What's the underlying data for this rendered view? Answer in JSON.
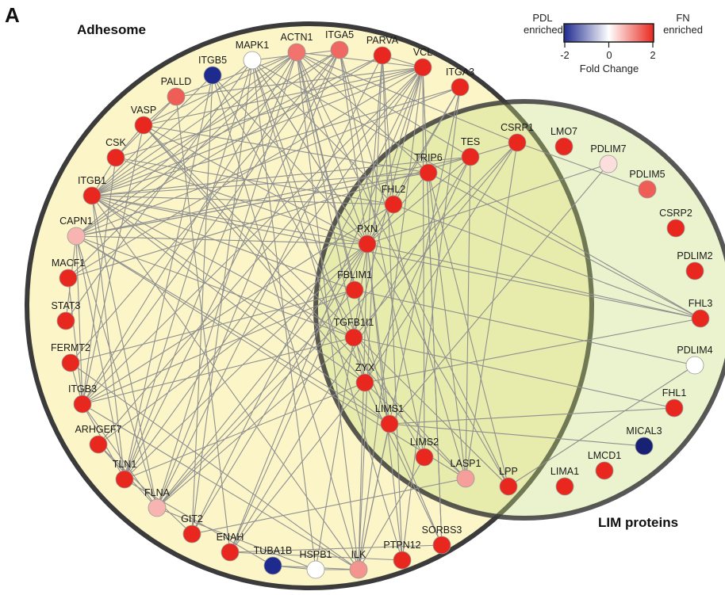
{
  "panel_label": "A",
  "sets": {
    "adhesome": {
      "label": "Adhesome",
      "fill": "#fbf5c8"
    },
    "lim": {
      "label": "LIM proteins",
      "fill": "#e8efc4"
    }
  },
  "legend": {
    "left_label_1": "PDL",
    "left_label_2": "enriched",
    "right_label_1": "FN",
    "right_label_2": "enriched",
    "ticks": [
      "-2",
      "0",
      "2"
    ],
    "axis_label": "Fold Change",
    "colors": [
      "#1f2a8f",
      "#ffffff",
      "#e8281e"
    ]
  },
  "nodes": [
    {
      "id": "ITGB5",
      "fc": -2
    },
    {
      "id": "MAPK1",
      "fc": 0
    },
    {
      "id": "ACTN1",
      "fc": 1.3
    },
    {
      "id": "ITGA5",
      "fc": 1.4
    },
    {
      "id": "PARVA",
      "fc": 2
    },
    {
      "id": "VCL",
      "fc": 2
    },
    {
      "id": "ITGA3",
      "fc": 2
    },
    {
      "id": "PALLD",
      "fc": 1.5
    },
    {
      "id": "VASP",
      "fc": 2
    },
    {
      "id": "CSK",
      "fc": 2
    },
    {
      "id": "ITGB1",
      "fc": 2
    },
    {
      "id": "CAPN1",
      "fc": 0.7
    },
    {
      "id": "MACF1",
      "fc": 2
    },
    {
      "id": "STAT3",
      "fc": 2
    },
    {
      "id": "FERMT2",
      "fc": 2
    },
    {
      "id": "ITGB3",
      "fc": 2
    },
    {
      "id": "ARHGEF7",
      "fc": 2
    },
    {
      "id": "TLN1",
      "fc": 2
    },
    {
      "id": "FLNA",
      "fc": 0.7
    },
    {
      "id": "GIT2",
      "fc": 2
    },
    {
      "id": "ENAH",
      "fc": 2
    },
    {
      "id": "TUBA1B",
      "fc": -2
    },
    {
      "id": "HSPB1",
      "fc": 0
    },
    {
      "id": "ILK",
      "fc": 1.0
    },
    {
      "id": "PTPN12",
      "fc": 2
    },
    {
      "id": "SORBS3",
      "fc": 2
    },
    {
      "id": "TES",
      "fc": 2
    },
    {
      "id": "CSRP1",
      "fc": 2
    },
    {
      "id": "TRIP6",
      "fc": 2
    },
    {
      "id": "FHL2",
      "fc": 2
    },
    {
      "id": "PXN",
      "fc": 2
    },
    {
      "id": "FBLIM1",
      "fc": 2
    },
    {
      "id": "TGFB1I1",
      "fc": 2
    },
    {
      "id": "ZYX",
      "fc": 2
    },
    {
      "id": "LIMS1",
      "fc": 2
    },
    {
      "id": "LIMS2",
      "fc": 2
    },
    {
      "id": "LASP1",
      "fc": 0.9
    },
    {
      "id": "LPP",
      "fc": 2
    },
    {
      "id": "LMO7",
      "fc": 2
    },
    {
      "id": "PDLIM7",
      "fc": 0.3
    },
    {
      "id": "PDLIM5",
      "fc": 1.5
    },
    {
      "id": "CSRP2",
      "fc": 2
    },
    {
      "id": "PDLIM2",
      "fc": 2
    },
    {
      "id": "FHL3",
      "fc": 2
    },
    {
      "id": "PDLIM4",
      "fc": 0
    },
    {
      "id": "FHL1",
      "fc": 2
    },
    {
      "id": "MICAL3",
      "fc": -2.2
    },
    {
      "id": "LMCD1",
      "fc": 2
    },
    {
      "id": "LIMA1",
      "fc": 2
    }
  ],
  "edges": [
    [
      "PXN",
      "ITGB1"
    ],
    [
      "PXN",
      "CAPN1"
    ],
    [
      "PXN",
      "VCL"
    ],
    [
      "PXN",
      "PARVA"
    ],
    [
      "PXN",
      "ILK"
    ],
    [
      "PXN",
      "TES"
    ],
    [
      "PXN",
      "ITGA5"
    ],
    [
      "PXN",
      "GIT2"
    ],
    [
      "PXN",
      "CSK"
    ],
    [
      "PXN",
      "TLN1"
    ],
    [
      "PXN",
      "PTPN12"
    ],
    [
      "PXN",
      "ACTN1"
    ],
    [
      "PXN",
      "VASP"
    ],
    [
      "PXN",
      "MAPK1"
    ],
    [
      "PXN",
      "ITGB5"
    ],
    [
      "PXN",
      "LIMS1"
    ],
    [
      "PXN",
      "LPP"
    ],
    [
      "PXN",
      "FHL3"
    ],
    [
      "PXN",
      "ITGA3"
    ],
    [
      "PXN",
      "FLNA"
    ],
    [
      "PXN",
      "ENAH"
    ],
    [
      "PXN",
      "ARHGEF7"
    ],
    [
      "ZYX",
      "VASP"
    ],
    [
      "ZYX",
      "ACTN1"
    ],
    [
      "ZYX",
      "ENAH"
    ],
    [
      "ZYX",
      "TES"
    ],
    [
      "ZYX",
      "LASP1"
    ],
    [
      "ZYX",
      "CSRP1"
    ],
    [
      "ZYX",
      "TLN1"
    ],
    [
      "ZYX",
      "ITGB1"
    ],
    [
      "ZYX",
      "FHL3"
    ],
    [
      "ZYX",
      "MAPK1"
    ],
    [
      "TGFB1I1",
      "PXN"
    ],
    [
      "TGFB1I1",
      "ITGB1"
    ],
    [
      "TGFB1I1",
      "VCL"
    ],
    [
      "TGFB1I1",
      "FLNA"
    ],
    [
      "TGFB1I1",
      "CSRP1"
    ],
    [
      "TGFB1I1",
      "FHL1"
    ],
    [
      "TGFB1I1",
      "CAPN1"
    ],
    [
      "TGFB1I1",
      "ITGB3"
    ],
    [
      "FBLIM1",
      "ITGB1"
    ],
    [
      "FBLIM1",
      "FLNA"
    ],
    [
      "FBLIM1",
      "FERMT2"
    ],
    [
      "FBLIM1",
      "ITGB3"
    ],
    [
      "FBLIM1",
      "PDLIM4"
    ],
    [
      "FBLIM1",
      "ACTN1"
    ],
    [
      "FHL2",
      "ITGB1"
    ],
    [
      "FHL2",
      "ITGA3"
    ],
    [
      "FHL2",
      "ITGB3"
    ],
    [
      "FHL2",
      "CSK"
    ],
    [
      "FHL2",
      "PARVA"
    ],
    [
      "FHL2",
      "MAPK1"
    ],
    [
      "FHL2",
      "FHL3"
    ],
    [
      "TRIP6",
      "PXN"
    ],
    [
      "TRIP6",
      "ACTN1"
    ],
    [
      "TRIP6",
      "VASP"
    ],
    [
      "TRIP6",
      "ITGB1"
    ],
    [
      "TRIP6",
      "LPP"
    ],
    [
      "TRIP6",
      "FHL3"
    ],
    [
      "TRIP6",
      "CAPN1"
    ],
    [
      "TES",
      "ACTN1"
    ],
    [
      "TES",
      "ITGB1"
    ],
    [
      "TES",
      "CAPN1"
    ],
    [
      "TES",
      "ENAH"
    ],
    [
      "CSRP1",
      "PDLIM5"
    ],
    [
      "CSRP1",
      "ACTN1"
    ],
    [
      "CSRP1",
      "MACF1"
    ],
    [
      "CSRP1",
      "FLNA"
    ],
    [
      "ILK",
      "ITGB1"
    ],
    [
      "ILK",
      "ITGB3"
    ],
    [
      "ILK",
      "PARVA"
    ],
    [
      "ILK",
      "LIMS1"
    ],
    [
      "ILK",
      "LIMS2"
    ],
    [
      "ILK",
      "ITGA3"
    ],
    [
      "ILK",
      "ITGB5"
    ],
    [
      "ILK",
      "VCL"
    ],
    [
      "ILK",
      "FERMT2"
    ],
    [
      "ILK",
      "ACTN1"
    ],
    [
      "LIMS1",
      "ITGB1"
    ],
    [
      "LIMS1",
      "CAPN1"
    ],
    [
      "LIMS1",
      "ACTN1"
    ],
    [
      "LIMS1",
      "PDLIM7"
    ],
    [
      "LIMS2",
      "ITGB5"
    ],
    [
      "LIMS2",
      "ITGA5"
    ],
    [
      "LIMS2",
      "VCL"
    ],
    [
      "LASP1",
      "VASP"
    ],
    [
      "LASP1",
      "ITGA5"
    ],
    [
      "LASP1",
      "TRIP6"
    ],
    [
      "LASP1",
      "TES"
    ],
    [
      "LASP1",
      "CAPN1"
    ],
    [
      "LASP1",
      "CSRP1"
    ],
    [
      "LPP",
      "VASP"
    ],
    [
      "LPP",
      "ACTN1"
    ],
    [
      "LPP",
      "PDLIM4"
    ],
    [
      "VCL",
      "TLN1"
    ],
    [
      "VCL",
      "ACTN1"
    ],
    [
      "VCL",
      "ITGB1"
    ],
    [
      "VCL",
      "ENAH"
    ],
    [
      "VCL",
      "ARHGEF7"
    ],
    [
      "VCL",
      "ITGB3"
    ],
    [
      "VCL",
      "VASP"
    ],
    [
      "VCL",
      "CSK"
    ],
    [
      "VCL",
      "PALLD"
    ],
    [
      "VCL",
      "SORBS3"
    ],
    [
      "VCL",
      "GIT2"
    ],
    [
      "VCL",
      "MACF1"
    ],
    [
      "TLN1",
      "ITGB1"
    ],
    [
      "TLN1",
      "ITGB3"
    ],
    [
      "TLN1",
      "ITGB5"
    ],
    [
      "TLN1",
      "ACTN1"
    ],
    [
      "TLN1",
      "CAPN1"
    ],
    [
      "TLN1",
      "ITGA5"
    ],
    [
      "TLN1",
      "MAPK1"
    ],
    [
      "ITGB1",
      "ACTN1"
    ],
    [
      "ITGB1",
      "ITGA5"
    ],
    [
      "ITGB1",
      "ITGA3"
    ],
    [
      "ITGB1",
      "FLNA"
    ],
    [
      "ITGB1",
      "CSK"
    ],
    [
      "ITGB1",
      "PARVA"
    ],
    [
      "ITGB1",
      "MAPK1"
    ],
    [
      "ITGB1",
      "ITGB5"
    ],
    [
      "ACTN1",
      "VASP"
    ],
    [
      "ACTN1",
      "PALLD"
    ],
    [
      "ACTN1",
      "ITGB3"
    ],
    [
      "ACTN1",
      "CAPN1"
    ],
    [
      "ACTN1",
      "FLNA"
    ],
    [
      "ACTN1",
      "MACF1"
    ],
    [
      "FLNA",
      "ITGB3"
    ],
    [
      "FLNA",
      "ARHGEF7"
    ],
    [
      "FLNA",
      "ITGA5"
    ],
    [
      "FLNA",
      "CAPN1"
    ],
    [
      "FLNA",
      "HSPB1"
    ],
    [
      "FLNA",
      "PARVA"
    ],
    [
      "MAPK1",
      "ITGA5"
    ],
    [
      "MAPK1",
      "PXN"
    ],
    [
      "MAPK1",
      "STAT3"
    ],
    [
      "MAPK1",
      "FHL3"
    ],
    [
      "MAPK1",
      "GIT2"
    ],
    [
      "MAPK1",
      "PTPN12"
    ],
    [
      "MAPK1",
      "HSPB1"
    ],
    [
      "PALLD",
      "VASP"
    ],
    [
      "PALLD",
      "ENAH"
    ],
    [
      "PALLD",
      "CSK"
    ],
    [
      "ITGA5",
      "CAPN1"
    ],
    [
      "ITGA5",
      "ITGB3"
    ],
    [
      "ITGA5",
      "FERMT2"
    ],
    [
      "ITGB3",
      "CSK"
    ],
    [
      "ITGB3",
      "CAPN1"
    ],
    [
      "ITGB3",
      "FERMT2"
    ],
    [
      "CAPN1",
      "TRIP6"
    ],
    [
      "CAPN1",
      "PARVA"
    ],
    [
      "CAPN1",
      "ITGA3"
    ],
    [
      "HSPB1",
      "ILK"
    ],
    [
      "HSPB1",
      "TUBA1B"
    ],
    [
      "HSPB1",
      "TGFB1I1"
    ],
    [
      "ENAH",
      "PTPN12"
    ],
    [
      "ENAH",
      "SORBS3"
    ],
    [
      "GIT2",
      "ARHGEF7"
    ],
    [
      "GIT2",
      "ITGB5"
    ],
    [
      "GIT2",
      "LASP1"
    ],
    [
      "SORBS3",
      "VCL"
    ],
    [
      "SORBS3",
      "TGFB1I1"
    ],
    [
      "SORBS3",
      "ZYX"
    ],
    [
      "PTPN12",
      "ITGA3"
    ],
    [
      "PTPN12",
      "PARVA"
    ],
    [
      "TUBA1B",
      "ILK"
    ],
    [
      "TUBA1B",
      "TLN1"
    ],
    [
      "PDLIM7",
      "PXN"
    ],
    [
      "FHL3",
      "ITGB1"
    ],
    [
      "FHL1",
      "LIMS1"
    ],
    [
      "MICAL3",
      "LIMS1"
    ],
    [
      "CSK",
      "VASP"
    ],
    [
      "PARVA",
      "VCL"
    ],
    [
      "VASP",
      "ITGB3"
    ],
    [
      "STAT3",
      "CAPN1"
    ],
    [
      "MACF1",
      "ITGB3"
    ]
  ]
}
